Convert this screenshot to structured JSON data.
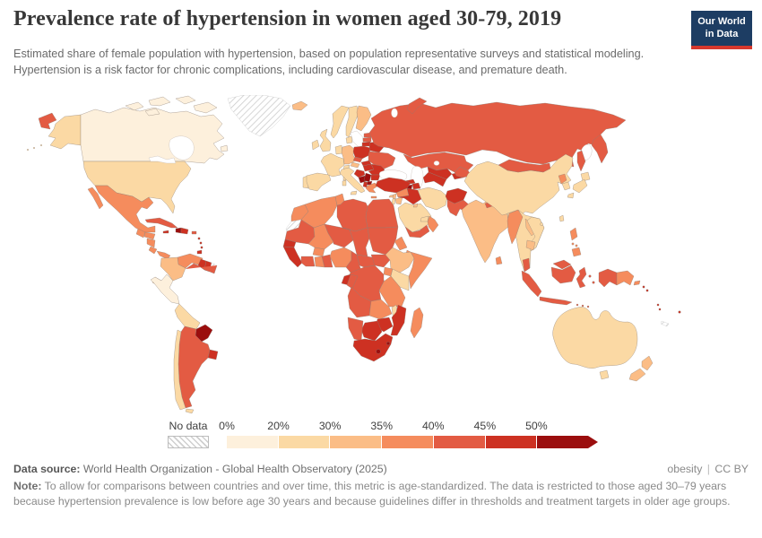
{
  "header": {
    "title": "Prevalence rate of hypertension in women aged 30-79, 2019",
    "subtitle": "Estimated share of female population with hypertension, based on population representative surveys and statistical modeling. Hypertension is a risk factor for chronic complications, including cardiovascular disease, and premature death."
  },
  "logo": {
    "line1": "Our World",
    "line2": "in Data"
  },
  "legend": {
    "no_data_label": "No data",
    "ticks": [
      "0%",
      "20%",
      "30%",
      "35%",
      "40%",
      "45%",
      "50%"
    ],
    "colors": [
      "#fdf0dc",
      "#fbd9a4",
      "#fbbd86",
      "#f58c5d",
      "#e35b43",
      "#cd3122",
      "#9b0e0e"
    ]
  },
  "footer": {
    "source_label": "Data source:",
    "source": "World Health Organization - Global Health Observatory (2025)",
    "attribution": "obesity",
    "divider": "|",
    "license": "CC BY",
    "note_label": "Note:",
    "note": "To allow for comparisons between countries and over time, this metric is age-standardized. The data is restricted to those aged 30–79 years because hypertension prevalence is low before age 30 years and because guidelines differ in thresholds and treatment targets in older age groups."
  },
  "chart_data": {
    "type": "choropleth",
    "title": "Prevalence rate of hypertension in women aged 30-79, 2019",
    "unit": "%",
    "bin_edges": [
      0,
      20,
      30,
      35,
      40,
      45,
      50
    ],
    "bin_labels": [
      "0-20%",
      "20-30%",
      "30-35%",
      "35-40%",
      "40-45%",
      "45-50%",
      "50%+"
    ],
    "no_data_value": -1,
    "regions": {
      "chukotka": 4,
      "alaska": 1,
      "aleutians": 1,
      "canada": 0,
      "arctic1": 0,
      "arctic2": 0,
      "arctic3": 0,
      "arctic4": 0,
      "arctic5": 0,
      "newfoundland": 0,
      "greenland": -1,
      "usa": 1,
      "mexico": 3,
      "baja": 3,
      "guatemala": 3,
      "honduras": 3,
      "nicaragua": 3,
      "costarica": 3,
      "panama": 3,
      "cuba": 4,
      "jamaica": 5,
      "haiti": 6,
      "domrep": 5,
      "puertorico": 4,
      "antilles": 5,
      "trinidad": 5,
      "venezuela": 3,
      "colombia": 2,
      "guyana": 5,
      "suriname": 5,
      "frguiana": -1,
      "ecuador": 2,
      "peru": 0,
      "brazil": 4,
      "bolivia": 1,
      "paraguay": 6,
      "uruguay": 5,
      "argentina": 4,
      "chile": 1,
      "tdf": 1,
      "iceland": 2,
      "ireland": 1,
      "uk": 1,
      "portugal": 1,
      "spain": 1,
      "france": 1,
      "corsica": 1,
      "benelux": 1,
      "germany": 2,
      "denmark": 1,
      "norway": 1,
      "sweden": 1,
      "finland": 2,
      "estonia": 4,
      "latvia": 4,
      "lithuania": 5,
      "poland": 5,
      "belarus": 5,
      "ukraine": 4,
      "czech": 4,
      "slovakia": 5,
      "austria": 2,
      "switzerland": 1,
      "hungary": 5,
      "romania": 5,
      "croatia": 5,
      "bosnia": 6,
      "serbia": 6,
      "bulgaria": 5,
      "albania": 5,
      "macedonia": 6,
      "greece": 3,
      "crete": 3,
      "italy": 1,
      "sicily": 1,
      "sardinia": 1,
      "russia": 4,
      "kamchatka": 4,
      "sakhalin": 4,
      "novayazemlya": 4,
      "kazakhstan": 4,
      "georgia": 5,
      "armenia": 6,
      "azerbaijan": 5,
      "turkey": 5,
      "cyprus": 2,
      "syria": 3,
      "lebanon": 2,
      "israel": 1,
      "jordan": 2,
      "iraq": 5,
      "iran": 1,
      "afghanistan": 5,
      "turkmenistan": 5,
      "uzbekistan": 5,
      "tajikistan": 5,
      "kyrgyzstan": 4,
      "saudi": 1,
      "yemen": 4,
      "oman": 3,
      "uae": 1,
      "kuwait": 2,
      "india": 2,
      "pakistan": 4,
      "nepal": 4,
      "bhutan": 4,
      "bangladesh": 3,
      "srilanka": 3,
      "myanmar": 3,
      "thailand": 1,
      "laos": 2,
      "vietnam": 1,
      "cambodia": 2,
      "hainan": 1,
      "china": 1,
      "mongolia": 4,
      "nkorea": 3,
      "skorea": 1,
      "hokkaido": 1,
      "honshu": 1,
      "kyushu": 1,
      "taiwan": 1,
      "luzon": 3,
      "visayas": 3,
      "mindanao": 3,
      "malaysia": 4,
      "emalaysia": 4,
      "sumatra": 4,
      "java": 4,
      "kalimantan": 4,
      "sulawesi": 4,
      "papuaid": 4,
      "moluccas": 4,
      "nusa": 4,
      "png": 3,
      "newbritain": 3,
      "solomon": 5,
      "vanuatu": 5,
      "fiji": 5,
      "newcaledonia": -1,
      "australia": 1,
      "tasmania": 1,
      "nzn": 2,
      "nzs": 2,
      "morocco": 3,
      "wsahara": -1,
      "algeria": 3,
      "tunisia": 3,
      "libya": 4,
      "egypt": 4,
      "mauritania": 4,
      "mali": 3,
      "niger": 4,
      "chad": 4,
      "sudan": 4,
      "eritrea": 3,
      "djibouti": 3,
      "senegal": 5,
      "guineacluster": 5,
      "burkina": 3,
      "ivorycoast": 4,
      "ghana": 3,
      "togobenin": 4,
      "nigeria": 3,
      "cameroon": 4,
      "car": 4,
      "ssudan": 4,
      "ethiopia": 2,
      "somalia": 3,
      "uganda": 3,
      "kenya": 1,
      "rwanda": 4,
      "drc": 4,
      "gabon": 5,
      "congo": 4,
      "tanzania": 3,
      "angola": 4,
      "zambia": 3,
      "malawi": 1,
      "mozambique": 5,
      "zimbabwe": 5,
      "botswana": 5,
      "namibia": 4,
      "southafrica": 5,
      "lesotho": 6,
      "eswatini": 6,
      "madagascar": 3
    }
  }
}
